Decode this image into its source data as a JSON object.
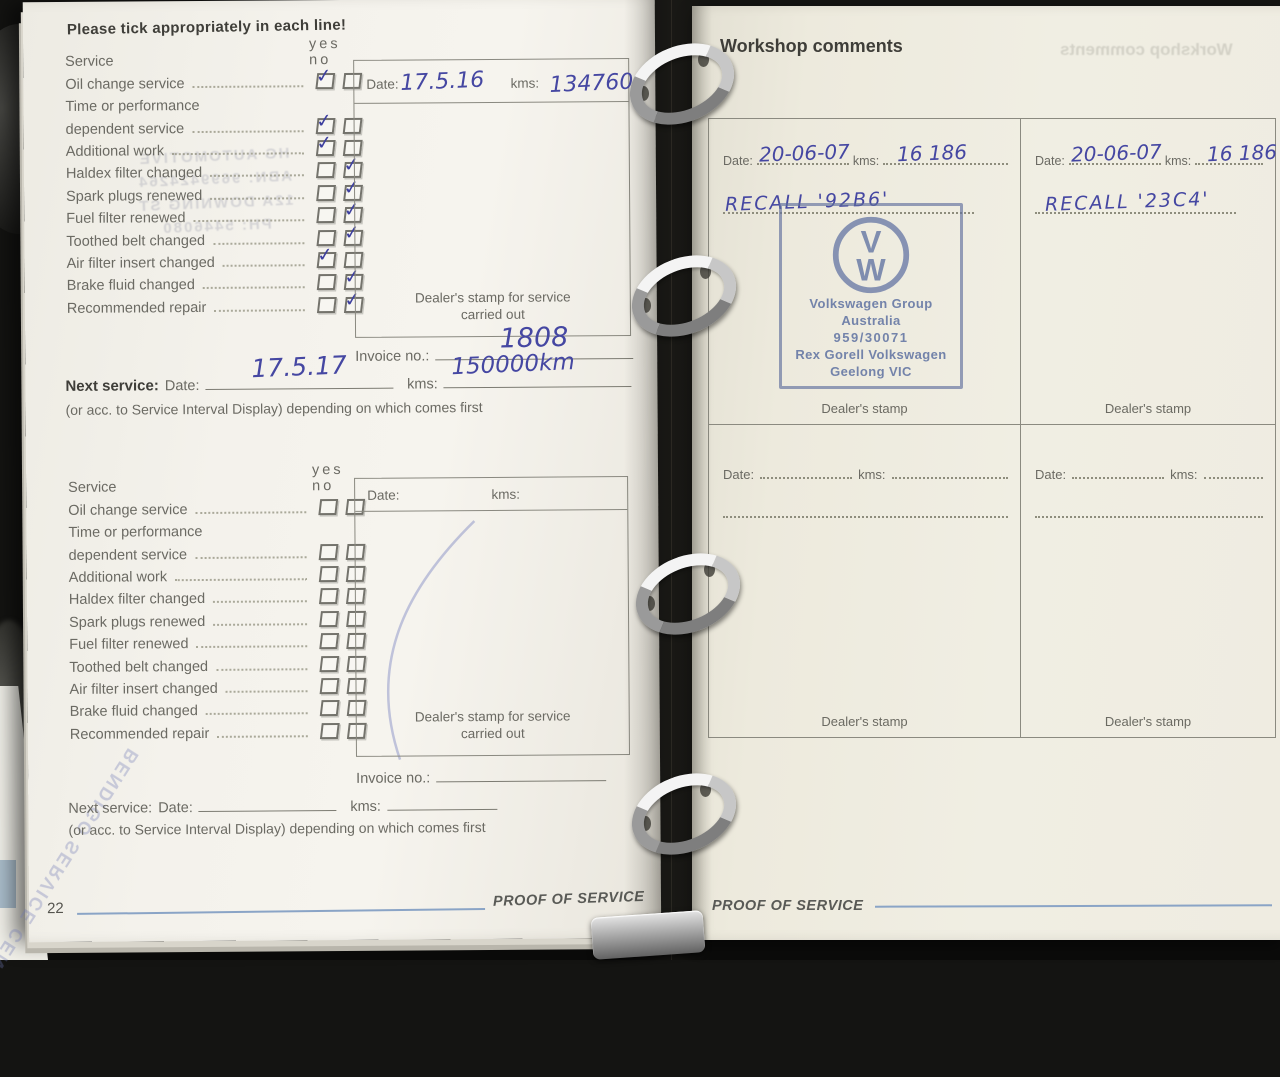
{
  "left_page": {
    "heading": "Please tick appropriately in each line!",
    "col_service": "Service",
    "col_yes": "yes",
    "col_no": "no",
    "checklist_items": [
      {
        "label": "Oil change service",
        "boxes": true
      },
      {
        "label": "Time or performance",
        "boxes": false
      },
      {
        "label": "dependent service",
        "boxes": true
      },
      {
        "label": "Additional work",
        "boxes": true
      },
      {
        "label": "Haldex filter changed",
        "boxes": true
      },
      {
        "label": "Spark plugs renewed",
        "boxes": true
      },
      {
        "label": "Fuel filter renewed",
        "boxes": true
      },
      {
        "label": "Toothed belt changed",
        "boxes": true
      },
      {
        "label": "Air filter insert changed",
        "boxes": true
      },
      {
        "label": "Brake fluid changed",
        "boxes": true
      },
      {
        "label": "Recommended repair",
        "boxes": true
      }
    ],
    "checklist1_ticks": [
      "yes",
      null,
      "yes",
      "yes",
      "no",
      "no",
      "no",
      "no",
      "yes",
      "no",
      "no"
    ],
    "checklist2_ticks": [
      null,
      null,
      null,
      null,
      null,
      null,
      null,
      null,
      null,
      null,
      null
    ],
    "box1": {
      "date_label": "Date:",
      "date_value": "17.5.16",
      "kms_label": "kms:",
      "kms_value": "134760",
      "caption": "Dealer's stamp for service carried out"
    },
    "invoice1": {
      "label": "Invoice no.:",
      "value": "1808"
    },
    "next1": {
      "prefix": "Next service:",
      "date_label": "Date:",
      "date_value": "17.5.17",
      "kms_label": "kms:",
      "kms_value": "150000km"
    },
    "interval_note": "(or acc. to Service Interval Display) depending on which comes first",
    "box2": {
      "date_label": "Date:",
      "kms_label": "kms:",
      "caption": "Dealer's stamp for service carried out"
    },
    "invoice2": {
      "label": "Invoice no.:",
      "value": ""
    },
    "next2": {
      "prefix": "Next service:",
      "date_label": "Date:",
      "date_value": "",
      "kms_label": "kms:",
      "kms_value": ""
    },
    "page_number": "22",
    "footer_label": "PROOF OF SERVICE",
    "ghost_stamp_lines": [
      "HG AUTOMOTIVE",
      "ABN: 9699424264",
      "12A DOWNING ST",
      "PH: 5446080"
    ],
    "ghost_diagonal": "BENDIGO SERVICE CENTRE"
  },
  "right_page": {
    "heading": "Workshop comments",
    "ghost_heading": "Workshop comments",
    "cell1": {
      "date_label": "Date:",
      "date_value": "20-06-07",
      "kms_label": "kms:",
      "kms_value": "16 186",
      "recall": "RECALL  '92B6'",
      "dealer_label": "Dealer's stamp"
    },
    "cell2": {
      "date_label": "Date:",
      "date_value": "20-06-07",
      "kms_label": "kms:",
      "kms_value": "16 186",
      "recall": "RECALL  '23C4'",
      "dealer_label": "Dealer's stamp"
    },
    "cell3": {
      "date_label": "Date:",
      "kms_label": "kms:",
      "dealer_label": "Dealer's stamp"
    },
    "cell4": {
      "date_label": "Date:",
      "kms_label": "kms:",
      "dealer_label": "Dealer's stamp"
    },
    "stamp": {
      "line1": "Volkswagen Group",
      "line2": "Australia",
      "line3": "959/30071",
      "line4": "Rex Gorell Volkswagen",
      "line5": "Geelong VIC"
    },
    "footer_label": "PROOF OF SERVICE"
  }
}
